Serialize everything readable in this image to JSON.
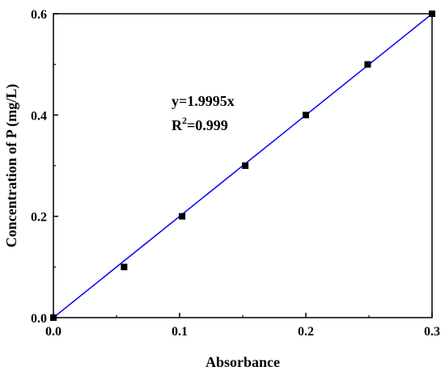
{
  "chart_data": {
    "type": "scatter",
    "xlabel": "Absorbance",
    "ylabel": "Concentration of P (mg/L)",
    "xlim": [
      0,
      0.3
    ],
    "ylim": [
      0,
      0.6
    ],
    "x_ticks": [
      "0.0",
      "0.1",
      "0.2",
      "0.3"
    ],
    "y_ticks": [
      "0.0",
      "0.2",
      "0.4",
      "0.6"
    ],
    "series": [
      {
        "marker": "square",
        "color": "#000000",
        "points": [
          {
            "x": 0.0,
            "y": 0.0
          },
          {
            "x": 0.056,
            "y": 0.1
          },
          {
            "x": 0.102,
            "y": 0.2
          },
          {
            "x": 0.152,
            "y": 0.3
          },
          {
            "x": 0.2,
            "y": 0.4
          },
          {
            "x": 0.249,
            "y": 0.5
          },
          {
            "x": 0.3,
            "y": 0.6
          }
        ]
      }
    ],
    "fit_line": {
      "slope": 1.9995,
      "intercept": 0,
      "color": "#0000ff"
    },
    "annotation": {
      "equation": "y=1.9995x",
      "r_prefix": "R",
      "r_sup": "2",
      "r_value": "=0.999"
    },
    "grid": false
  }
}
